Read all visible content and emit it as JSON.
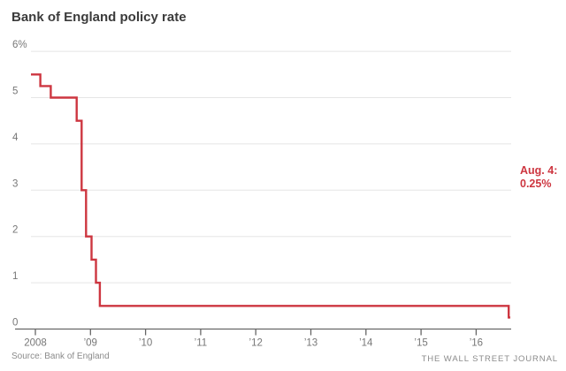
{
  "header": {
    "title": "Bank of England policy rate"
  },
  "footer": {
    "source": "Source: Bank of England",
    "branding": "THE WALL STREET JOURNAL"
  },
  "annotation": {
    "line1": "Aug. 4:",
    "line2": "0.25%"
  },
  "colors": {
    "line": "#cd3640",
    "annotation_text": "#cd3640",
    "grid": "#e5e5e5",
    "axis": "#666666",
    "tick_label": "#777777",
    "title_text": "#3b3b3b",
    "footer_text": "#8b8b8b"
  },
  "chart_data": {
    "type": "line",
    "subtype": "step-after",
    "title": "Bank of England policy rate",
    "xlabel": "",
    "ylabel": "",
    "x_unit": "year",
    "xlim": [
      2007.92,
      2016.66
    ],
    "ylim": [
      0,
      6
    ],
    "grid": "horizontal",
    "legend": "none",
    "y_ticks": [
      {
        "value": 6,
        "label": "6%"
      },
      {
        "value": 5,
        "label": "5"
      },
      {
        "value": 4,
        "label": "4"
      },
      {
        "value": 3,
        "label": "3"
      },
      {
        "value": 2,
        "label": "2"
      },
      {
        "value": 1,
        "label": "1"
      },
      {
        "value": 0,
        "label": "0"
      }
    ],
    "x_ticks": [
      {
        "value": 2008,
        "label": "2008"
      },
      {
        "value": 2009,
        "label": "’09"
      },
      {
        "value": 2010,
        "label": "’10"
      },
      {
        "value": 2011,
        "label": "’11"
      },
      {
        "value": 2012,
        "label": "’12"
      },
      {
        "value": 2013,
        "label": "’13"
      },
      {
        "value": 2014,
        "label": "’14"
      },
      {
        "value": 2015,
        "label": "’15"
      },
      {
        "value": 2016,
        "label": "’16"
      }
    ],
    "series": [
      {
        "name": "Bank of England policy rate (%)",
        "color": "#cd3640",
        "points": [
          {
            "x": 2007.92,
            "y": 5.5
          },
          {
            "x": 2008.09,
            "y": 5.25
          },
          {
            "x": 2008.28,
            "y": 5.0
          },
          {
            "x": 2008.75,
            "y": 4.5
          },
          {
            "x": 2008.84,
            "y": 3.0
          },
          {
            "x": 2008.92,
            "y": 2.0
          },
          {
            "x": 2009.02,
            "y": 1.5
          },
          {
            "x": 2009.1,
            "y": 1.0
          },
          {
            "x": 2009.17,
            "y": 0.5
          },
          {
            "x": 2016.59,
            "y": 0.25
          }
        ],
        "end_x": 2016.62
      }
    ],
    "annotations": [
      {
        "text": "Aug. 4: 0.25%",
        "x": 2016.59,
        "y": 0.25,
        "position": "right-of-plot"
      }
    ]
  }
}
